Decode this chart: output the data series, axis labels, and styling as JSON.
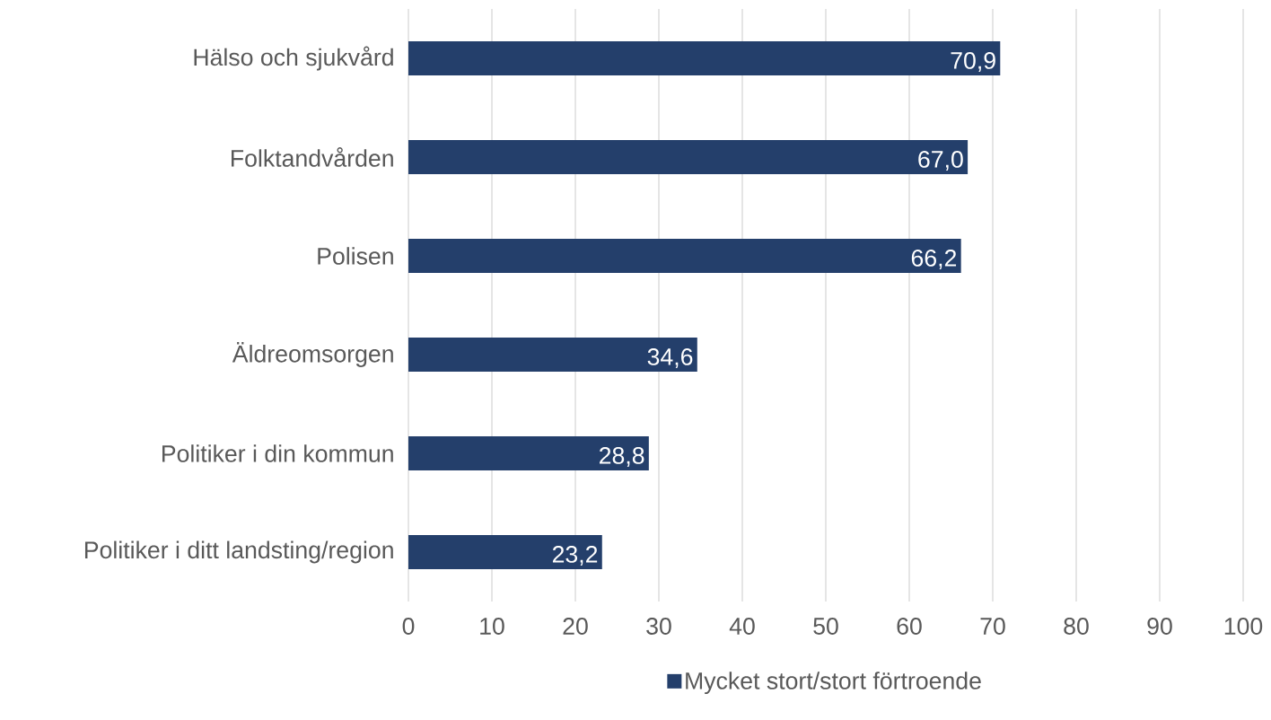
{
  "chart_data": {
    "type": "bar",
    "orientation": "horizontal",
    "categories": [
      "Hälso och sjukvård",
      "Folktandvården",
      "Polisen",
      "Äldreomsorgen",
      "Politiker i din kommun",
      "Politiker i ditt landsting/region"
    ],
    "series": [
      {
        "name": "Mycket stort/stort förtroende",
        "color": "#243f6b",
        "values": [
          70.9,
          67.0,
          66.2,
          34.6,
          28.8,
          23.2
        ],
        "value_labels": [
          "70,9",
          "67,0",
          "66,2",
          "34,6",
          "28,8",
          "23,2"
        ]
      }
    ],
    "xlim": [
      0,
      100
    ],
    "xticks": [
      0,
      10,
      20,
      30,
      40,
      50,
      60,
      70,
      80,
      90,
      100
    ],
    "grid": "x",
    "legend": "bottom"
  }
}
